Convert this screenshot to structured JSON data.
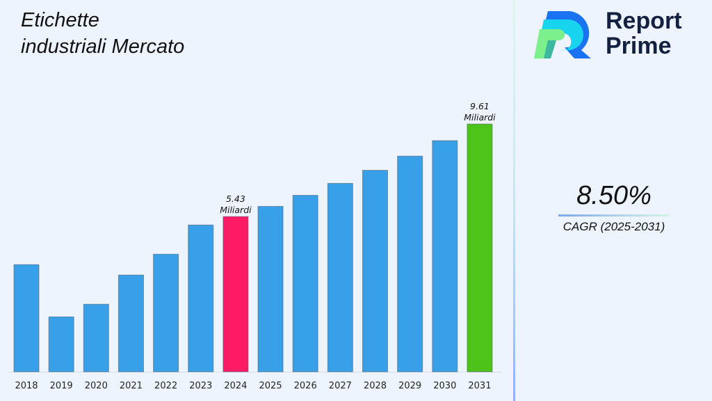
{
  "title_line1": "Etichette",
  "title_line2": "industriali Mercato",
  "brand": {
    "line1": "Report",
    "line2": "Prime"
  },
  "cagr": {
    "value": "8.50%",
    "label": "CAGR (2025-2031)"
  },
  "chart_data": {
    "type": "bar",
    "title": "Etichette industriali Mercato",
    "xlabel": "",
    "ylabel": "",
    "categories": [
      "2018",
      "2019",
      "2020",
      "2021",
      "2022",
      "2023",
      "2024",
      "2025",
      "2026",
      "2027",
      "2028",
      "2029",
      "2030",
      "2031"
    ],
    "values": [
      3.26,
      0.9,
      1.47,
      2.79,
      3.73,
      5.05,
      5.43,
      5.89,
      6.39,
      6.93,
      7.52,
      8.16,
      8.86,
      9.61
    ],
    "unit": "Miliardi",
    "annotations": [
      {
        "category": "2024",
        "value_label": "5.43",
        "unit_label": "Miliardi"
      },
      {
        "category": "2031",
        "value_label": "9.61",
        "unit_label": "Miliardi"
      }
    ],
    "colors": {
      "default": "#37a0e8",
      "2024": "#ff1a66",
      "2031": "#4cc21a"
    },
    "grid": false
  }
}
